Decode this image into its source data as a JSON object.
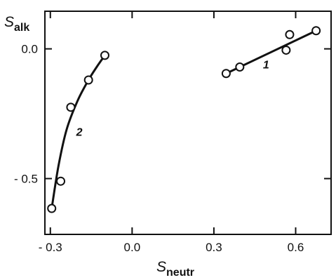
{
  "chart_data": {
    "type": "scatter",
    "title": "",
    "xlabel": "S",
    "xlabel_sub": "neutr",
    "ylabel": "S",
    "ylabel_sub": "alk",
    "xlim": [
      -0.32,
      0.73
    ],
    "ylim": [
      -0.715,
      0.145
    ],
    "grid": false,
    "legend": "none",
    "colors": {
      "ink": "#111111",
      "background": "#ffffff",
      "marker_fill": "#ffffff"
    },
    "xticks": [
      {
        "value": -0.3,
        "label": "- 0.3"
      },
      {
        "value": 0.0,
        "label": "0.0"
      },
      {
        "value": 0.3,
        "label": "0.3"
      },
      {
        "value": 0.6,
        "label": "0.6"
      }
    ],
    "yticks": [
      {
        "value": 0.0,
        "label": "0.0"
      },
      {
        "value": -0.5,
        "label": "- 0.5"
      }
    ],
    "series": [
      {
        "name": "1",
        "points": [
          {
            "x": 0.345,
            "y": -0.095
          },
          {
            "x": 0.395,
            "y": -0.07
          },
          {
            "x": 0.565,
            "y": -0.005
          },
          {
            "x": 0.578,
            "y": 0.055
          },
          {
            "x": 0.675,
            "y": 0.07
          }
        ],
        "fit": [
          {
            "x": 0.345,
            "y": -0.095
          },
          {
            "x": 0.675,
            "y": 0.07
          }
        ]
      },
      {
        "name": "2",
        "points": [
          {
            "x": -0.295,
            "y": -0.615
          },
          {
            "x": -0.262,
            "y": -0.51
          },
          {
            "x": -0.225,
            "y": -0.225
          },
          {
            "x": -0.16,
            "y": -0.12
          },
          {
            "x": -0.1,
            "y": -0.025
          }
        ],
        "fit": [
          {
            "x": -0.295,
            "y": -0.615
          },
          {
            "x": -0.27,
            "y": -0.45
          },
          {
            "x": -0.24,
            "y": -0.31
          },
          {
            "x": -0.2,
            "y": -0.2
          },
          {
            "x": -0.16,
            "y": -0.12
          },
          {
            "x": -0.13,
            "y": -0.07
          },
          {
            "x": -0.1,
            "y": -0.025
          }
        ]
      }
    ]
  }
}
